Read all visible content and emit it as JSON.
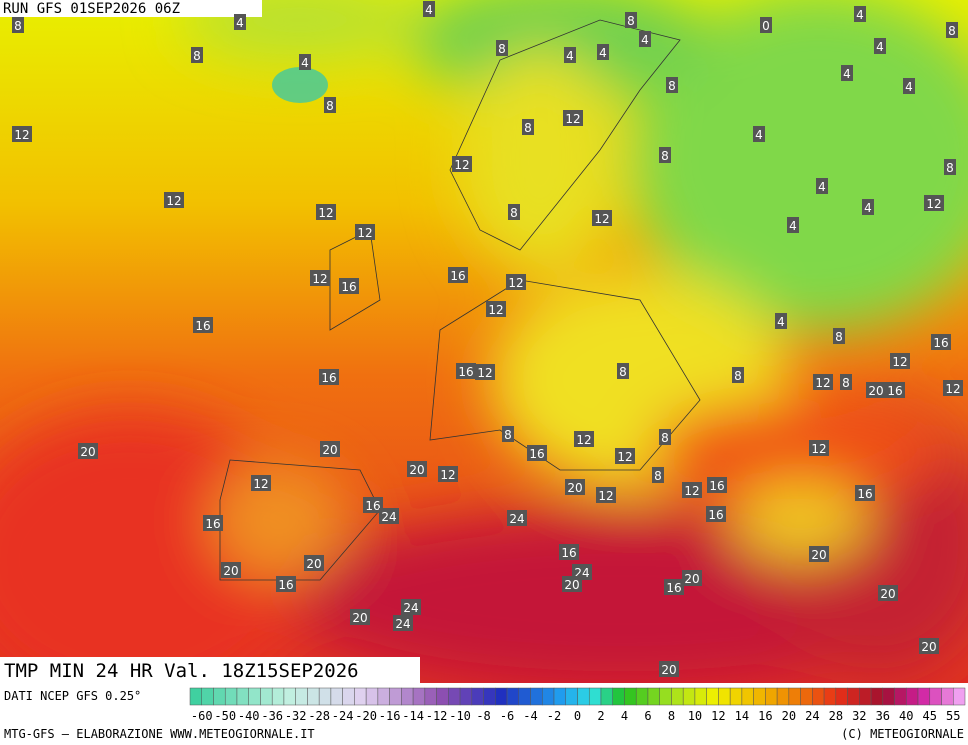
{
  "header": {
    "run": "RUN GFS 01SEP2026 06Z"
  },
  "map": {
    "title": "TMP MIN 24 HR Val. 18Z15SEP2026",
    "labels": [
      8,
      4,
      4,
      8,
      0,
      4,
      4,
      8,
      8,
      8,
      4,
      4,
      4,
      4,
      8,
      4,
      4,
      8,
      12,
      8,
      12,
      4,
      8,
      8,
      12,
      4,
      12,
      12,
      8,
      12,
      4,
      12,
      4,
      12,
      16,
      12,
      16,
      12,
      12,
      16,
      4,
      8,
      16,
      12,
      16,
      12,
      8,
      8,
      16,
      12,
      8,
      20,
      16,
      12,
      8,
      12,
      8,
      20,
      20,
      12,
      16,
      12,
      20,
      12,
      8,
      12,
      16,
      12,
      20,
      12,
      16,
      16,
      24,
      24,
      16,
      16,
      16,
      20,
      20,
      20,
      24,
      20,
      16,
      20,
      16,
      20,
      24,
      20,
      24,
      20,
      20
    ]
  },
  "legend": {
    "source": "DATI NCEP GFS 0.25°",
    "scale": [
      -60,
      -50,
      -40,
      -36,
      -32,
      -28,
      -24,
      -20,
      -16,
      -14,
      -12,
      -10,
      -8,
      -6,
      -4,
      -2,
      0,
      2,
      4,
      6,
      8,
      10,
      12,
      14,
      16,
      20,
      24,
      28,
      32,
      36,
      40,
      45,
      55
    ]
  },
  "footer": {
    "credit": "MTG-GFS — ELABORAZIONE WWW.METEOGIORNALE.IT",
    "copyright": "(C) METEOGIORNALE"
  }
}
